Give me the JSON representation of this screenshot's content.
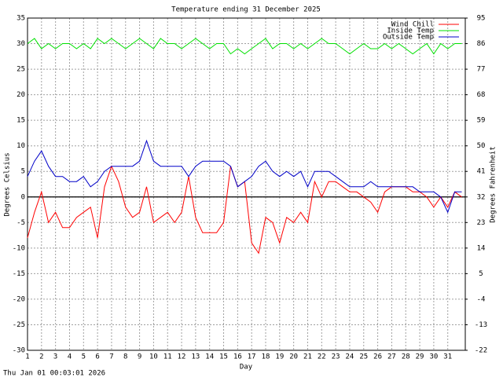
{
  "chart_data": {
    "type": "line",
    "title": "Temperature ending 31 December 2025",
    "xlabel": "Day",
    "ylabel": "Degrees Celsius",
    "y2label": "Degrees Fahrenheit",
    "timestamp": "Thu Jan 01 00:03:01 2026",
    "x": [
      1,
      1.5,
      2,
      2.5,
      3,
      3.5,
      4,
      4.5,
      5,
      5.5,
      6,
      6.5,
      7,
      7.5,
      8,
      8.5,
      9,
      9.5,
      10,
      10.5,
      11,
      11.5,
      12,
      12.5,
      13,
      13.5,
      14,
      14.5,
      15,
      15.5,
      16,
      16.5,
      17,
      17.5,
      18,
      18.5,
      19,
      19.5,
      20,
      20.5,
      21,
      21.5,
      22,
      22.5,
      23,
      23.5,
      24,
      24.5,
      25,
      25.5,
      26,
      26.5,
      27,
      27.5,
      28,
      28.5,
      29,
      29.5,
      30,
      30.5,
      31,
      31.5,
      32
    ],
    "series": [
      {
        "name": "Wind Chill",
        "color": "#ff0000",
        "values": [
          -8,
          -3,
          1,
          -5,
          -3,
          -6,
          -6,
          -4,
          -3,
          -2,
          -8,
          2,
          6,
          3,
          -2,
          -4,
          -3,
          2,
          -5,
          -4,
          -3,
          -5,
          -3,
          4,
          -4,
          -7,
          -7,
          -7,
          -5,
          6,
          2,
          3,
          -9,
          -11,
          -4,
          -5,
          -9,
          -4,
          -5,
          -3,
          -5,
          3,
          0,
          3,
          3,
          2,
          1,
          1,
          0,
          -1,
          -3,
          1,
          2,
          2,
          2,
          1,
          1,
          0,
          -2,
          0,
          -2,
          1,
          0
        ]
      },
      {
        "name": "Inside Temp",
        "color": "#00e000",
        "values": [
          30,
          31,
          29,
          30,
          29,
          30,
          30,
          29,
          30,
          29,
          31,
          30,
          31,
          30,
          29,
          30,
          31,
          30,
          29,
          31,
          30,
          30,
          29,
          30,
          31,
          30,
          29,
          30,
          30,
          28,
          29,
          28,
          29,
          30,
          31,
          29,
          30,
          30,
          29,
          30,
          29,
          30,
          31,
          30,
          30,
          29,
          28,
          29,
          30,
          29,
          29,
          30,
          29,
          30,
          29,
          28,
          29,
          30,
          28,
          30,
          29,
          30,
          30
        ]
      },
      {
        "name": "Outside Temp",
        "color": "#0000c8",
        "values": [
          4,
          7,
          9,
          6,
          4,
          4,
          3,
          3,
          4,
          2,
          3,
          5,
          6,
          6,
          6,
          6,
          7,
          11,
          7,
          6,
          6,
          6,
          6,
          4,
          6,
          7,
          7,
          7,
          7,
          6,
          2,
          3,
          4,
          6,
          7,
          5,
          4,
          5,
          4,
          5,
          2,
          5,
          5,
          5,
          4,
          3,
          2,
          2,
          2,
          3,
          2,
          2,
          2,
          2,
          2,
          2,
          1,
          1,
          1,
          0,
          -3,
          1,
          1
        ]
      }
    ],
    "xlim": [
      1,
      32.25
    ],
    "xticks": [
      1,
      2,
      3,
      4,
      5,
      6,
      7,
      8,
      9,
      10,
      11,
      12,
      13,
      14,
      15,
      16,
      17,
      18,
      19,
      20,
      21,
      22,
      23,
      24,
      25,
      26,
      27,
      28,
      29,
      30,
      31
    ],
    "ylim": [
      -30,
      35
    ],
    "yticks": [
      -30,
      -25,
      -20,
      -15,
      -10,
      -5,
      0,
      5,
      10,
      15,
      20,
      25,
      30,
      35
    ],
    "y2lim": [
      -22,
      95
    ],
    "y2ticks": [
      -22,
      -13,
      -4,
      5,
      14,
      23,
      32,
      41,
      50,
      59,
      68,
      77,
      86,
      95
    ],
    "grid": true,
    "legend": "upper right"
  }
}
